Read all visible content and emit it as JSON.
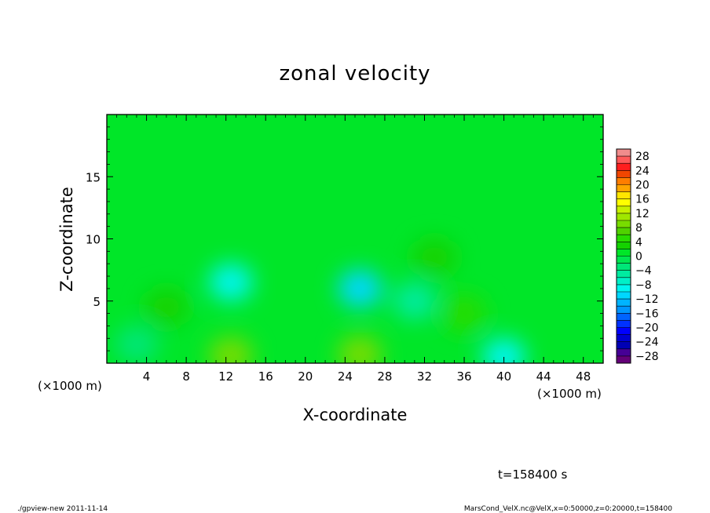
{
  "chart_data": {
    "type": "heatmap",
    "title": "zonal velocity",
    "xlabel": "X-coordinate",
    "ylabel": "Z-coordinate",
    "x_unit_left": "(×1000 m)",
    "x_unit_right": "(×1000 m)",
    "xlim": [
      0,
      50
    ],
    "ylim": [
      0,
      20
    ],
    "x_ticks": [
      4,
      8,
      12,
      16,
      20,
      24,
      28,
      32,
      36,
      40,
      44,
      48
    ],
    "y_ticks": [
      5,
      10,
      15
    ],
    "colorbar": {
      "labels": [
        "28",
        "24",
        "20",
        "16",
        "12",
        "8",
        "4",
        "0",
        "−4",
        "−8",
        "−12",
        "−16",
        "−20",
        "−24",
        "−28"
      ],
      "levels": [
        30,
        28,
        26,
        24,
        22,
        20,
        18,
        16,
        14,
        12,
        10,
        8,
        6,
        4,
        2,
        0,
        -2,
        -4,
        -6,
        -8,
        -10,
        -12,
        -14,
        -16,
        -18,
        -20,
        -22,
        -24,
        -26,
        -28,
        -30
      ],
      "colors": [
        "#f08c8c",
        "#ff5a5a",
        "#ff1e1e",
        "#f04600",
        "#ff7d00",
        "#ffa500",
        "#ffe600",
        "#ffff00",
        "#c8f000",
        "#a0e600",
        "#78dc00",
        "#50d200",
        "#28dc00",
        "#14d200",
        "#00e628",
        "#00e650",
        "#00e678",
        "#00eba0",
        "#00f0c8",
        "#00f5f0",
        "#00d7ff",
        "#00b4ff",
        "#0096ff",
        "#0064ff",
        "#0032ff",
        "#0000ff",
        "#0000d2",
        "#0000b4",
        "#460096",
        "#640078"
      ]
    },
    "background_value": 2,
    "features": [
      {
        "x": 12.5,
        "z": 6.5,
        "value": -8
      },
      {
        "x": 25.5,
        "z": 6.0,
        "value": -11
      },
      {
        "x": 40,
        "z": 0.5,
        "value": -9
      },
      {
        "x": 12.5,
        "z": 0.6,
        "value": 10
      },
      {
        "x": 25.5,
        "z": 0.7,
        "value": 9
      },
      {
        "x": 36,
        "z": 4.0,
        "value": 5
      },
      {
        "x": 33,
        "z": 8.5,
        "value": 4
      },
      {
        "x": 6,
        "z": 4.5,
        "value": 3
      },
      {
        "x": 3,
        "z": 1.5,
        "value": -3
      },
      {
        "x": 31,
        "z": 5.0,
        "value": -5
      }
    ]
  },
  "annotations": {
    "time_label": "t=158400 s",
    "footer_left": "./gpview-new  2011-11-14",
    "footer_right": "MarsCond_VelX.nc@VelX,x=0:50000,z=0:20000,t=158400"
  }
}
